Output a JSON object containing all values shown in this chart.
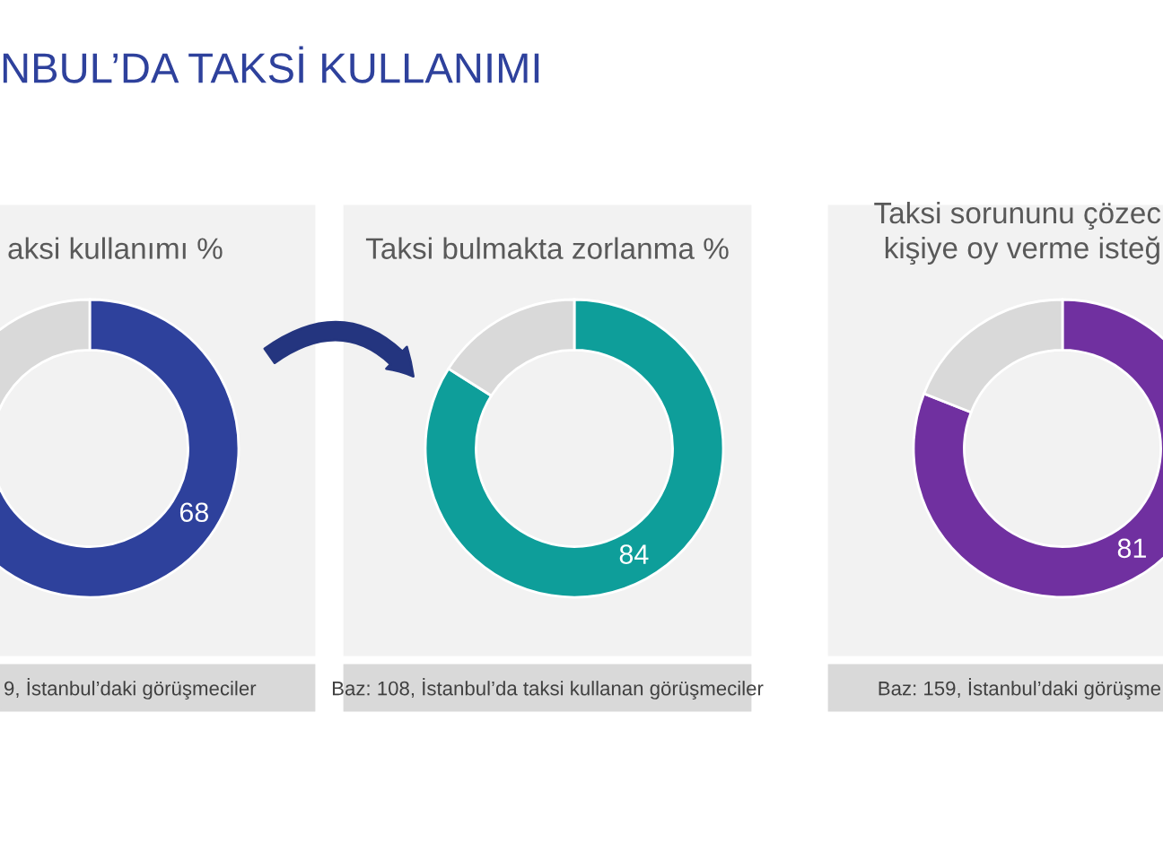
{
  "chart_data": [
    {
      "type": "donut",
      "title": "aksi kullanımı %",
      "categories": [
        null,
        null
      ],
      "values": [
        68,
        32
      ],
      "colors": [
        "#2e419c",
        "#d9d9d9"
      ],
      "value_labels": [
        "68",
        null
      ],
      "annotations": [
        "NBUL’DA TAKSİ KULLANIMI",
        "9, İstanbul’daki görüşmeciler"
      ]
    },
    {
      "type": "donut",
      "title": "Taksi bulmakta zorlanma %",
      "categories": [
        null,
        null
      ],
      "values": [
        84,
        16
      ],
      "colors": [
        "#0e9e9a",
        "#d9d9d9"
      ],
      "value_labels": [
        "84",
        null
      ],
      "annotations": [
        "Baz: 108, İstanbul’da taksi kullanan görüşmeciler"
      ]
    },
    {
      "type": "donut",
      "title": "Taksi sorununu çözec\nkişiye oy verme isteğ",
      "categories": [
        null,
        null
      ],
      "values": [
        81,
        19
      ],
      "colors": [
        "#7030a0",
        "#d9d9d9"
      ],
      "value_labels": [
        "81",
        null
      ],
      "annotations": [
        "Baz: 159, İstanbul’daki görüşme"
      ]
    }
  ]
}
